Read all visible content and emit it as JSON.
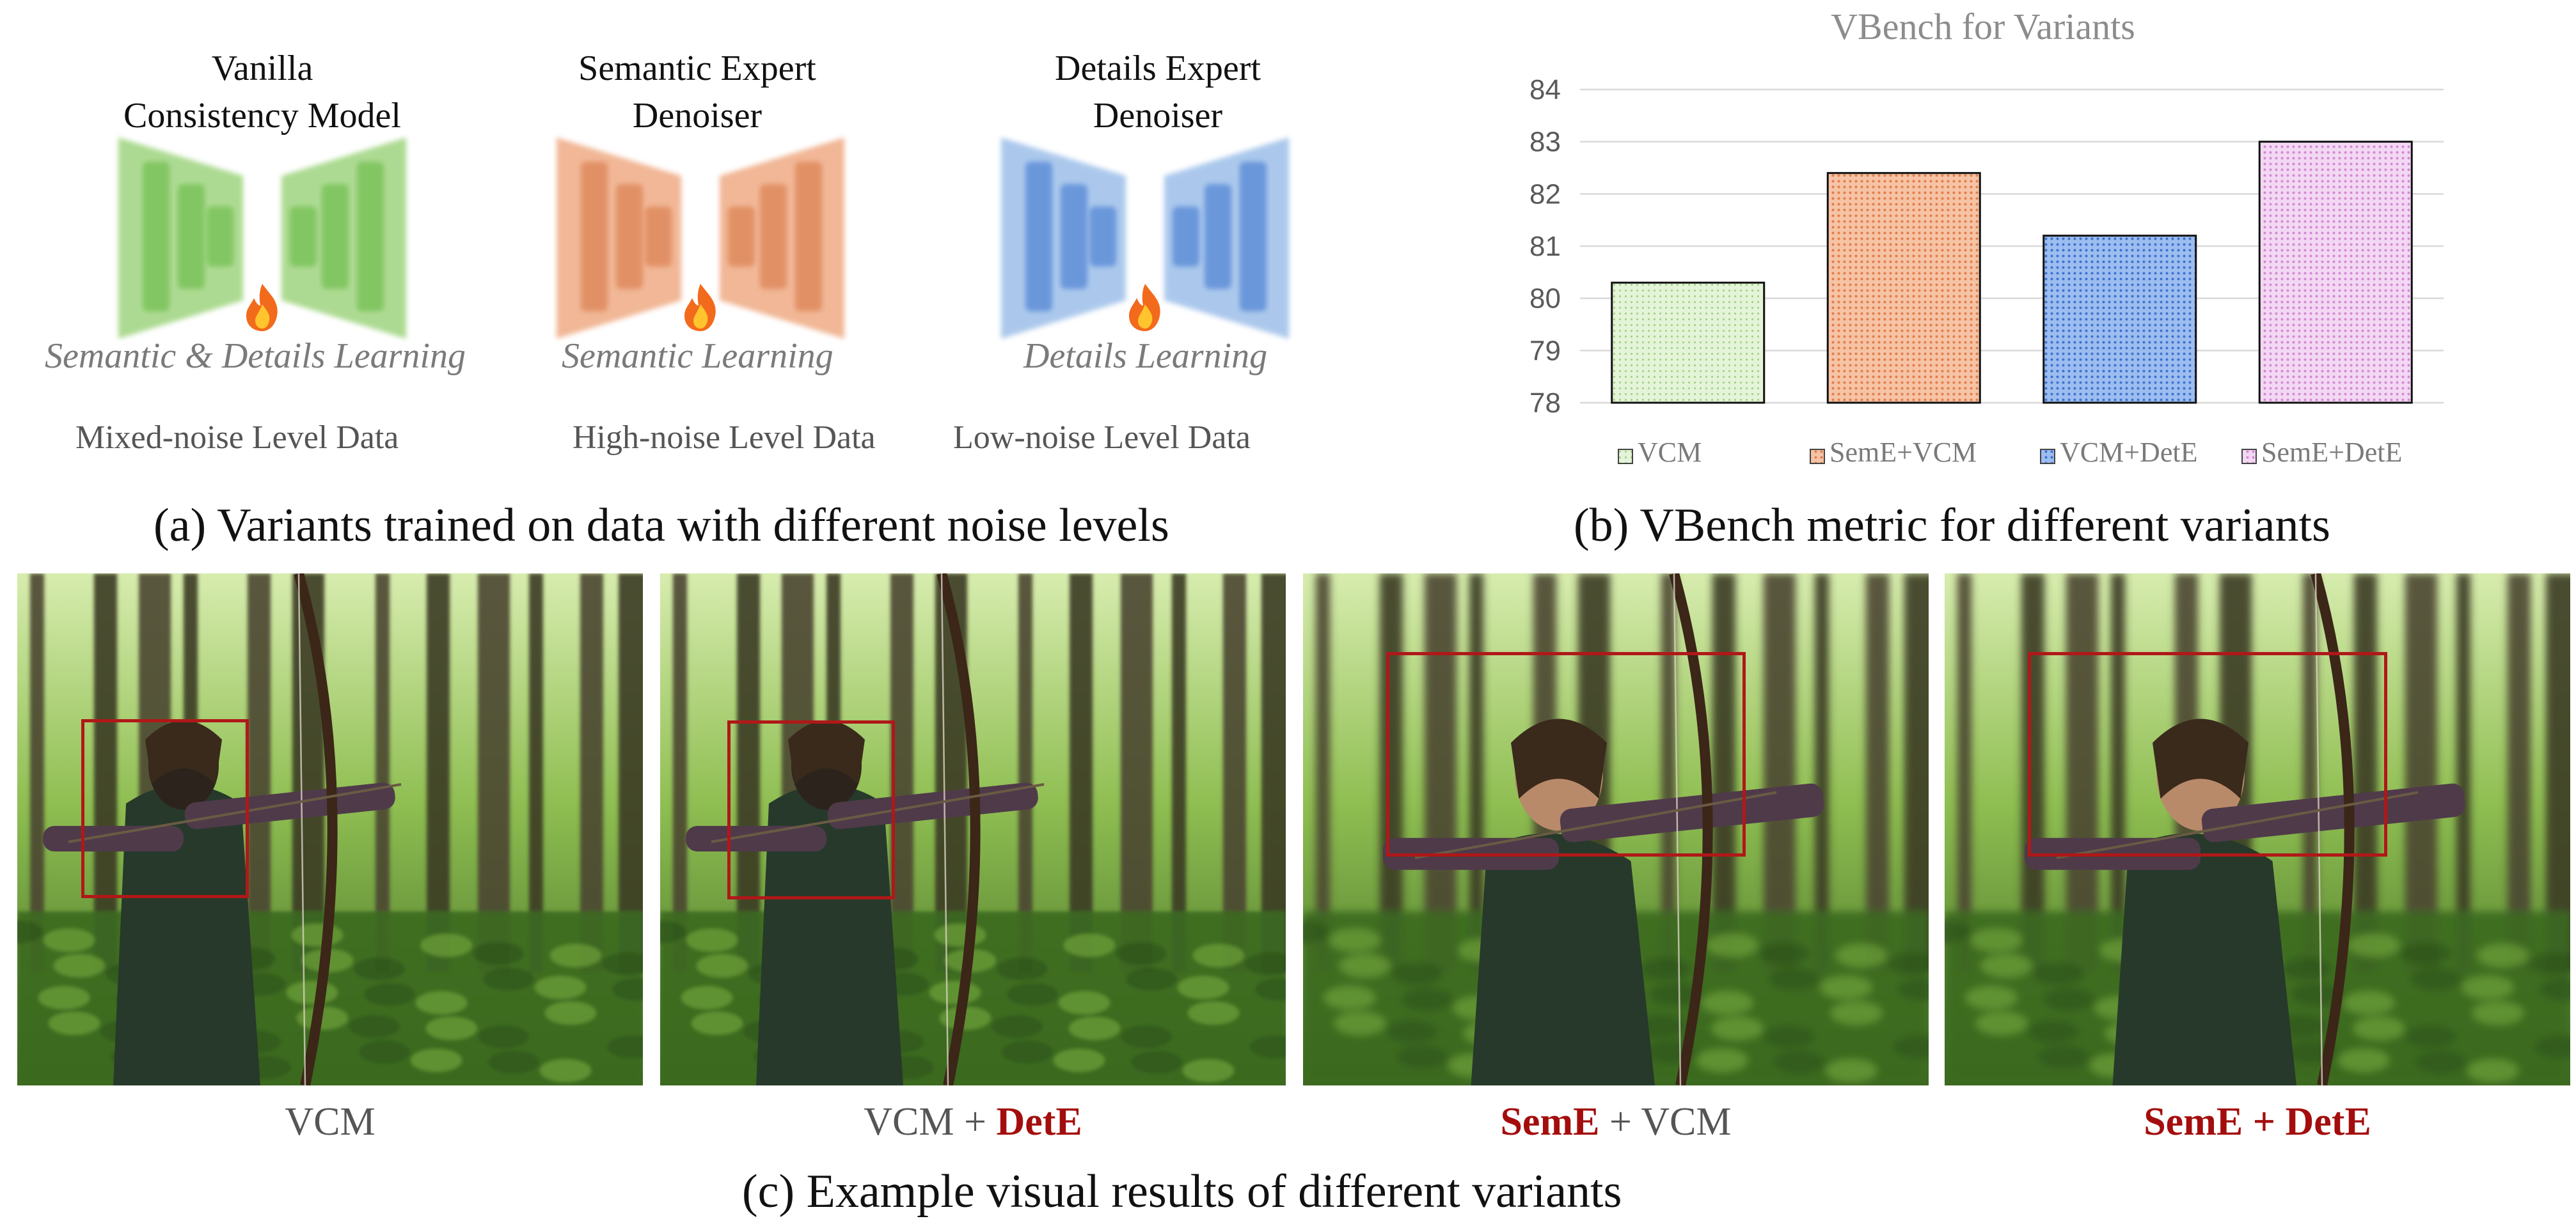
{
  "panel_a": {
    "models": [
      {
        "title_lines": [
          "Vanilla",
          "Consistency Model"
        ],
        "learning": "Semantic & Details Learning",
        "color": "#9fd47f",
        "bar": "#7ac35a"
      },
      {
        "title_lines": [
          "Semantic Expert",
          "Denoiser"
        ],
        "learning": "Semantic Learning",
        "color": "#efab84",
        "bar": "#df8a5d"
      },
      {
        "title_lines": [
          "Details Expert",
          "Denoiser"
        ],
        "learning": "Details Learning",
        "color": "#9dbfe9",
        "bar": "#5f8fd8"
      }
    ],
    "data_labels": [
      "Mixed-noise Level Data",
      "High-noise Level Data",
      "Low-noise Level Data"
    ],
    "caption": "(a) Variants trained on data with different noise levels"
  },
  "panel_b": {
    "caption": "(b) VBench metric for different variants"
  },
  "chart_data": {
    "type": "bar",
    "title": "VBench for Variants",
    "categories": [
      "VCM",
      "SemE+VCM",
      "VCM+DetE",
      "SemE+DetE"
    ],
    "values": [
      80.3,
      82.4,
      81.2,
      83.0
    ],
    "ylim": [
      78,
      84
    ],
    "yticks": [
      78,
      79,
      80,
      81,
      82,
      83,
      84
    ],
    "colors": [
      "#d6efc4",
      "#efa47a",
      "#6d9be0",
      "#eab6ea"
    ],
    "legend": "bottom",
    "grid": true
  },
  "panel_c": {
    "labels": [
      {
        "plain_before": "VCM",
        "bold": "",
        "plain_after": ""
      },
      {
        "plain_before": "VCM + ",
        "bold": "DetE",
        "plain_after": ""
      },
      {
        "plain_before": "",
        "bold": "SemE",
        "plain_after": " + VCM"
      },
      {
        "plain_before": "",
        "bold": "SemE + DetE",
        "plain_after": ""
      }
    ],
    "caption": "(c) Example visual results of different variants"
  }
}
